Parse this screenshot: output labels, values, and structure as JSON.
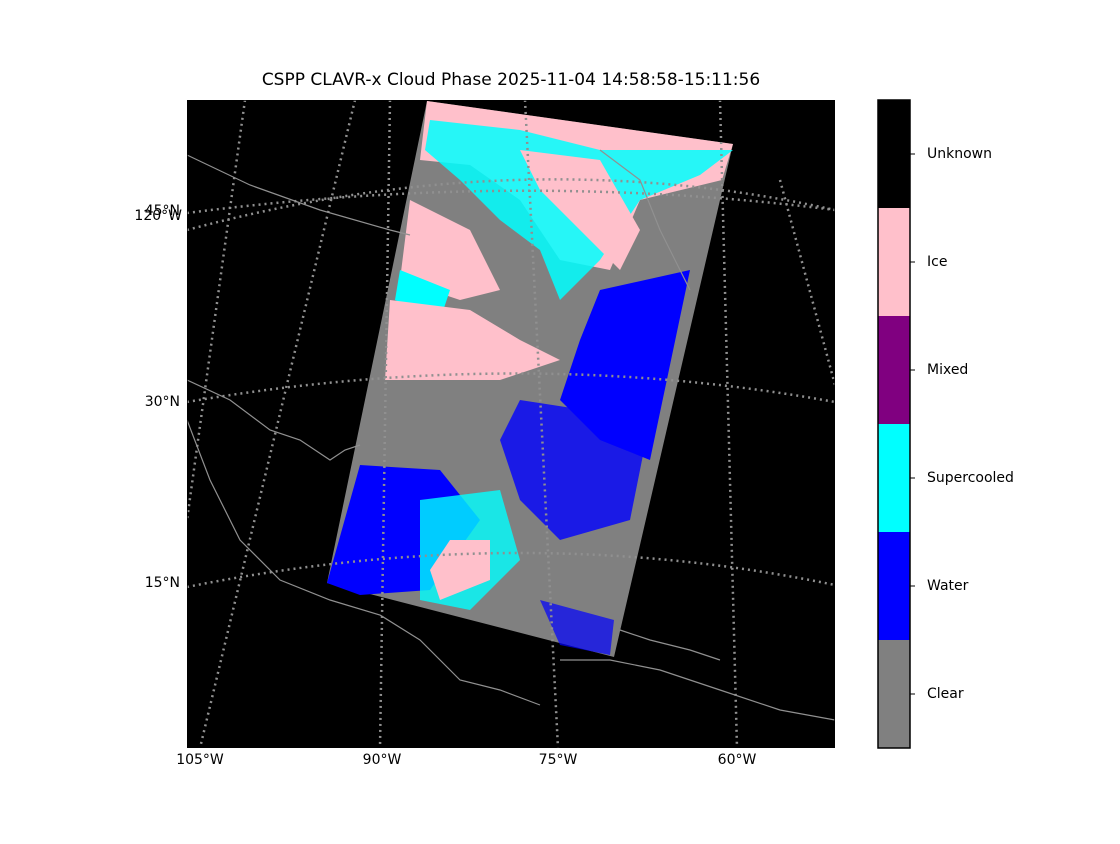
{
  "title": "CSPP CLAVR-x Cloud Phase 2025-11-04 14:58:58-15:11:56",
  "colorbar": {
    "categories": [
      {
        "label": "Clear",
        "color": "#808080"
      },
      {
        "label": "Water",
        "color": "#0000ff"
      },
      {
        "label": "Supercooled",
        "color": "#00ffff"
      },
      {
        "label": "Mixed",
        "color": "#800080"
      },
      {
        "label": "Ice",
        "color": "#ffc0cb"
      },
      {
        "label": "Unknown",
        "color": "#000000"
      }
    ]
  },
  "lat_labels": [
    "45°N",
    "30°N",
    "15°N",
    "120°W"
  ],
  "lon_labels": [
    "105°W",
    "90°W",
    "75°W",
    "60°W"
  ]
}
